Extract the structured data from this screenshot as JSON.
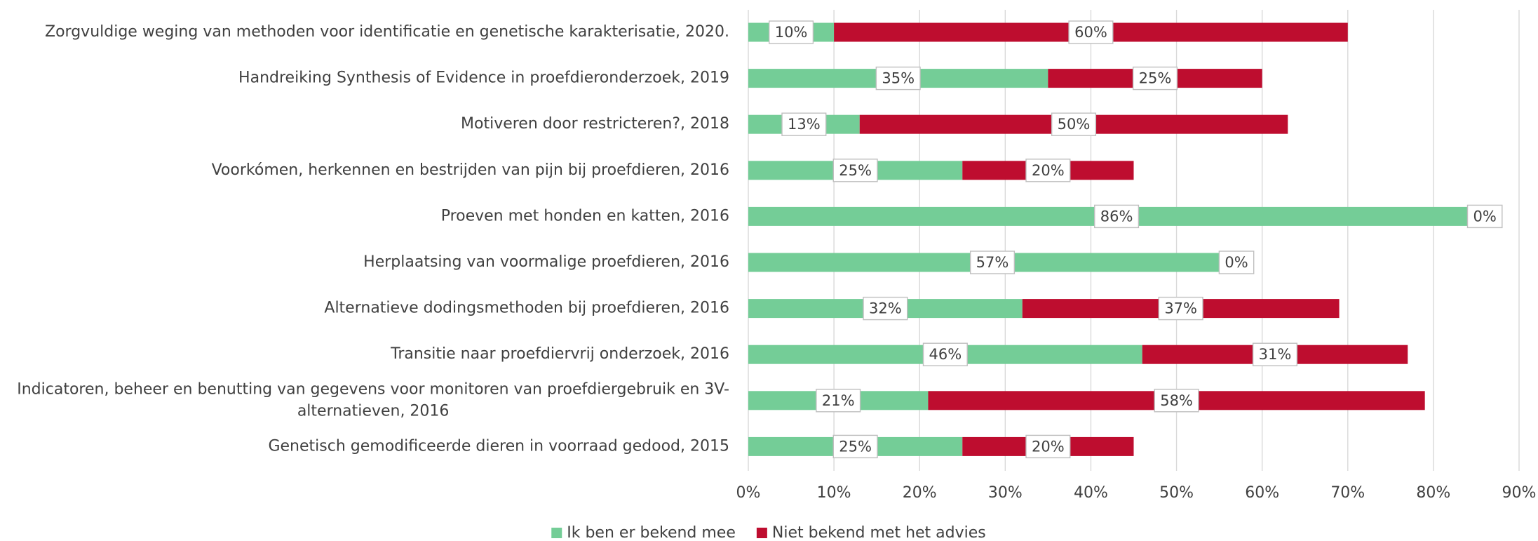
{
  "chart_data": {
    "type": "stacked-barh",
    "categories": [
      "Zorgvuldige weging van methoden voor identificatie en genetische karakterisatie, 2020.",
      "Handreiking Synthesis of Evidence in proefdieronderzoek, 2019",
      "Motiveren door restricteren?, 2018",
      "Voorkómen, herkennen en bestrijden van pijn bij proefdieren, 2016",
      "Proeven met honden en katten, 2016",
      "Herplaatsing van voormalige proefdieren, 2016",
      "Alternatieve dodingsmethoden bij proefdieren, 2016",
      "Transitie naar proefdiervrij onderzoek, 2016",
      "Indicatoren, beheer en benutting van gegevens voor monitoren van proefdiergebruik en 3V-alternatieven, 2016",
      "Genetisch gemodificeerde dieren in voorraad gedood, 2015"
    ],
    "series": [
      {
        "name": "Ik ben er bekend mee",
        "color": "#74cd97",
        "values": [
          10,
          35,
          13,
          25,
          86,
          57,
          32,
          46,
          21,
          25
        ],
        "value_labels": [
          "10%",
          "35%",
          "13%",
          "25%",
          "86%",
          "57%",
          "32%",
          "46%",
          "21%",
          "25%"
        ]
      },
      {
        "name": "Niet bekend met het advies",
        "color": "#be0d2f",
        "values": [
          60,
          25,
          50,
          20,
          0,
          0,
          37,
          31,
          58,
          20
        ],
        "value_labels": [
          "60%",
          "25%",
          "50%",
          "20%",
          "0%",
          "0%",
          "37%",
          "31%",
          "58%",
          "20%"
        ]
      }
    ],
    "xlim": [
      0,
      90
    ],
    "xticks": [
      {
        "value": 0,
        "label": "0%"
      },
      {
        "value": 10,
        "label": "10%"
      },
      {
        "value": 20,
        "label": "20%"
      },
      {
        "value": 30,
        "label": "30%"
      },
      {
        "value": 40,
        "label": "40%"
      },
      {
        "value": 50,
        "label": "50%"
      },
      {
        "value": 60,
        "label": "60%"
      },
      {
        "value": 70,
        "label": "70%"
      },
      {
        "value": 80,
        "label": "80%"
      },
      {
        "value": 90,
        "label": "90%"
      }
    ],
    "grid": true,
    "legend": "bottom"
  }
}
